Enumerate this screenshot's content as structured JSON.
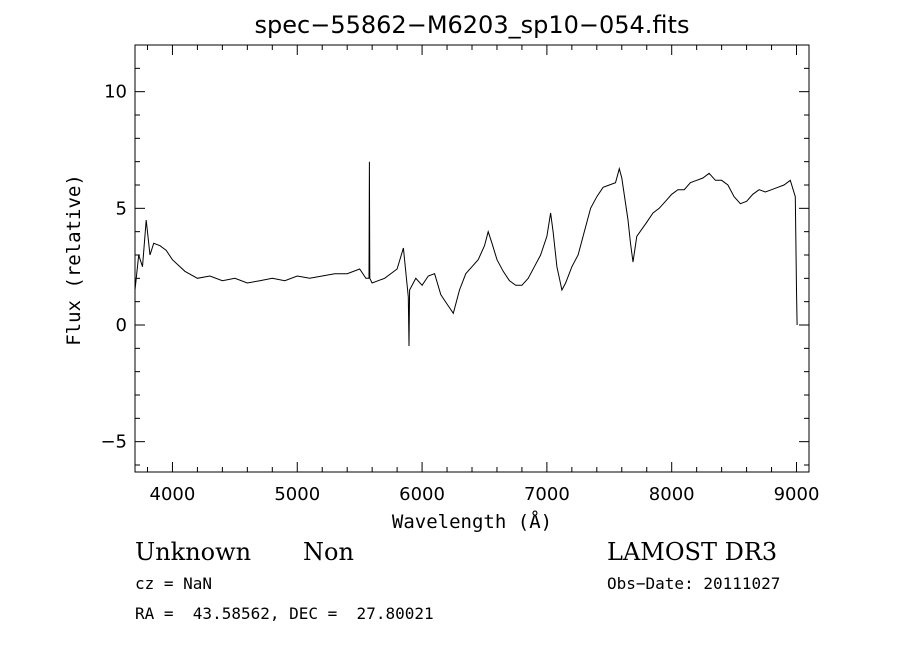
{
  "chart_data": {
    "type": "line",
    "title": "spec−55862−M6203_sp10−054.fits",
    "xlabel": "Wavelength (Å)",
    "ylabel": "Flux (relative)",
    "xlim": [
      3700,
      9100
    ],
    "ylim": [
      -6.3,
      12.0
    ],
    "x_ticks": [
      4000,
      5000,
      6000,
      7000,
      8000,
      9000
    ],
    "y_ticks": [
      -5,
      0,
      5,
      10
    ],
    "grid": false,
    "series": [
      {
        "points": [
          [
            3700,
            1.5
          ],
          [
            3730,
            3.0
          ],
          [
            3760,
            2.5
          ],
          [
            3790,
            4.5
          ],
          [
            3820,
            3.0
          ],
          [
            3850,
            3.5
          ],
          [
            3900,
            3.4
          ],
          [
            3950,
            3.2
          ],
          [
            4000,
            2.8
          ],
          [
            4100,
            2.3
          ],
          [
            4200,
            2.0
          ],
          [
            4300,
            2.1
          ],
          [
            4400,
            1.9
          ],
          [
            4500,
            2.0
          ],
          [
            4600,
            1.8
          ],
          [
            4700,
            1.9
          ],
          [
            4800,
            2.0
          ],
          [
            4900,
            1.9
          ],
          [
            5000,
            2.1
          ],
          [
            5100,
            2.0
          ],
          [
            5200,
            2.1
          ],
          [
            5300,
            2.2
          ],
          [
            5400,
            2.2
          ],
          [
            5500,
            2.4
          ],
          [
            5550,
            2.0
          ],
          [
            5575,
            2.0
          ],
          [
            5578,
            7.0
          ],
          [
            5581,
            2.0
          ],
          [
            5600,
            1.8
          ],
          [
            5700,
            2.0
          ],
          [
            5800,
            2.4
          ],
          [
            5850,
            3.3
          ],
          [
            5890,
            1.2
          ],
          [
            5895,
            -0.9
          ],
          [
            5900,
            1.5
          ],
          [
            5950,
            2.0
          ],
          [
            6000,
            1.7
          ],
          [
            6050,
            2.1
          ],
          [
            6100,
            2.2
          ],
          [
            6150,
            1.3
          ],
          [
            6200,
            0.9
          ],
          [
            6250,
            0.5
          ],
          [
            6300,
            1.5
          ],
          [
            6350,
            2.2
          ],
          [
            6400,
            2.5
          ],
          [
            6450,
            2.8
          ],
          [
            6500,
            3.4
          ],
          [
            6530,
            4.0
          ],
          [
            6560,
            3.5
          ],
          [
            6600,
            2.8
          ],
          [
            6650,
            2.3
          ],
          [
            6700,
            1.9
          ],
          [
            6750,
            1.7
          ],
          [
            6800,
            1.7
          ],
          [
            6850,
            2.0
          ],
          [
            6900,
            2.5
          ],
          [
            6950,
            3.0
          ],
          [
            7000,
            3.8
          ],
          [
            7030,
            4.8
          ],
          [
            7050,
            4.0
          ],
          [
            7080,
            2.5
          ],
          [
            7100,
            2.0
          ],
          [
            7120,
            1.5
          ],
          [
            7150,
            1.8
          ],
          [
            7200,
            2.5
          ],
          [
            7250,
            3.0
          ],
          [
            7300,
            4.0
          ],
          [
            7350,
            5.0
          ],
          [
            7400,
            5.5
          ],
          [
            7450,
            5.9
          ],
          [
            7500,
            6.0
          ],
          [
            7550,
            6.1
          ],
          [
            7580,
            6.7
          ],
          [
            7600,
            6.3
          ],
          [
            7650,
            4.5
          ],
          [
            7670,
            3.5
          ],
          [
            7690,
            2.7
          ],
          [
            7720,
            3.8
          ],
          [
            7800,
            4.4
          ],
          [
            7850,
            4.8
          ],
          [
            7900,
            5.0
          ],
          [
            7950,
            5.3
          ],
          [
            8000,
            5.6
          ],
          [
            8050,
            5.8
          ],
          [
            8100,
            5.8
          ],
          [
            8150,
            6.1
          ],
          [
            8200,
            6.2
          ],
          [
            8250,
            6.3
          ],
          [
            8300,
            6.5
          ],
          [
            8350,
            6.2
          ],
          [
            8400,
            6.2
          ],
          [
            8450,
            6.0
          ],
          [
            8500,
            5.5
          ],
          [
            8550,
            5.2
          ],
          [
            8600,
            5.3
          ],
          [
            8650,
            5.6
          ],
          [
            8700,
            5.8
          ],
          [
            8750,
            5.7
          ],
          [
            8800,
            5.8
          ],
          [
            8850,
            5.9
          ],
          [
            8900,
            6.0
          ],
          [
            8950,
            6.2
          ],
          [
            8990,
            5.5
          ],
          [
            9000,
            1.5
          ],
          [
            9005,
            0.0
          ]
        ]
      }
    ],
    "annotations": [
      "Unknown",
      "Non",
      "LAMOST DR3",
      "cz = NaN",
      "Obs−Date: 20111027",
      "RA =  43.58562, DEC =  27.80021"
    ]
  },
  "info": {
    "class": "Unknown",
    "subclass": "Non",
    "survey": "LAMOST DR3",
    "cz": "cz = NaN",
    "obs_date": "Obs−Date: 20111027",
    "coords": "RA =  43.58562, DEC =  27.80021"
  }
}
